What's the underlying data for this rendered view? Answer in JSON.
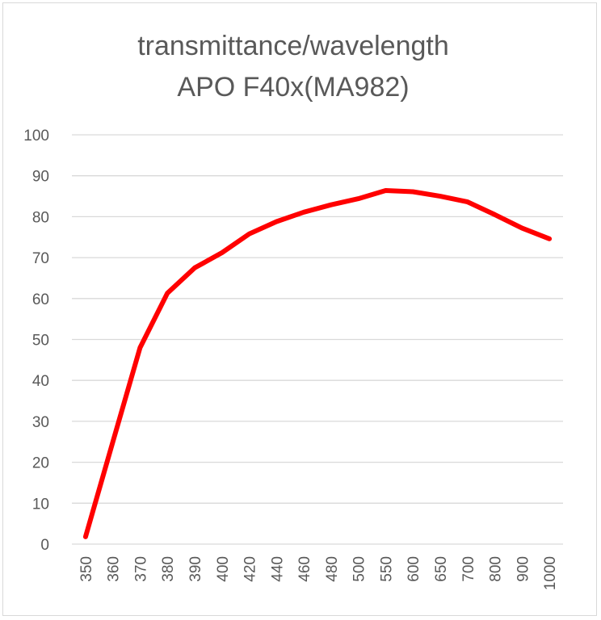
{
  "chart_data": {
    "type": "line",
    "title": [
      "transmittance/wavelength",
      "APO F40x(MA982)"
    ],
    "xlabel": "",
    "ylabel": "",
    "ylim": [
      0,
      100
    ],
    "yticks": [
      "0",
      "10",
      "20",
      "30",
      "40",
      "50",
      "60",
      "70",
      "80",
      "90",
      "100"
    ],
    "grid": true,
    "legend": "none",
    "categories": [
      "350",
      "360",
      "370",
      "380",
      "390",
      "400",
      "420",
      "440",
      "460",
      "480",
      "500",
      "550",
      "600",
      "650",
      "700",
      "800",
      "900",
      "1000"
    ],
    "series": [
      {
        "name": "transmittance",
        "color": "#ff0000",
        "values": [
          1.8,
          25,
          48,
          61.3,
          67.5,
          71.2,
          75.8,
          78.8,
          81.1,
          82.9,
          84.4,
          86.4,
          86.1,
          85,
          83.6,
          80.5,
          77.2,
          74.6
        ]
      }
    ]
  }
}
